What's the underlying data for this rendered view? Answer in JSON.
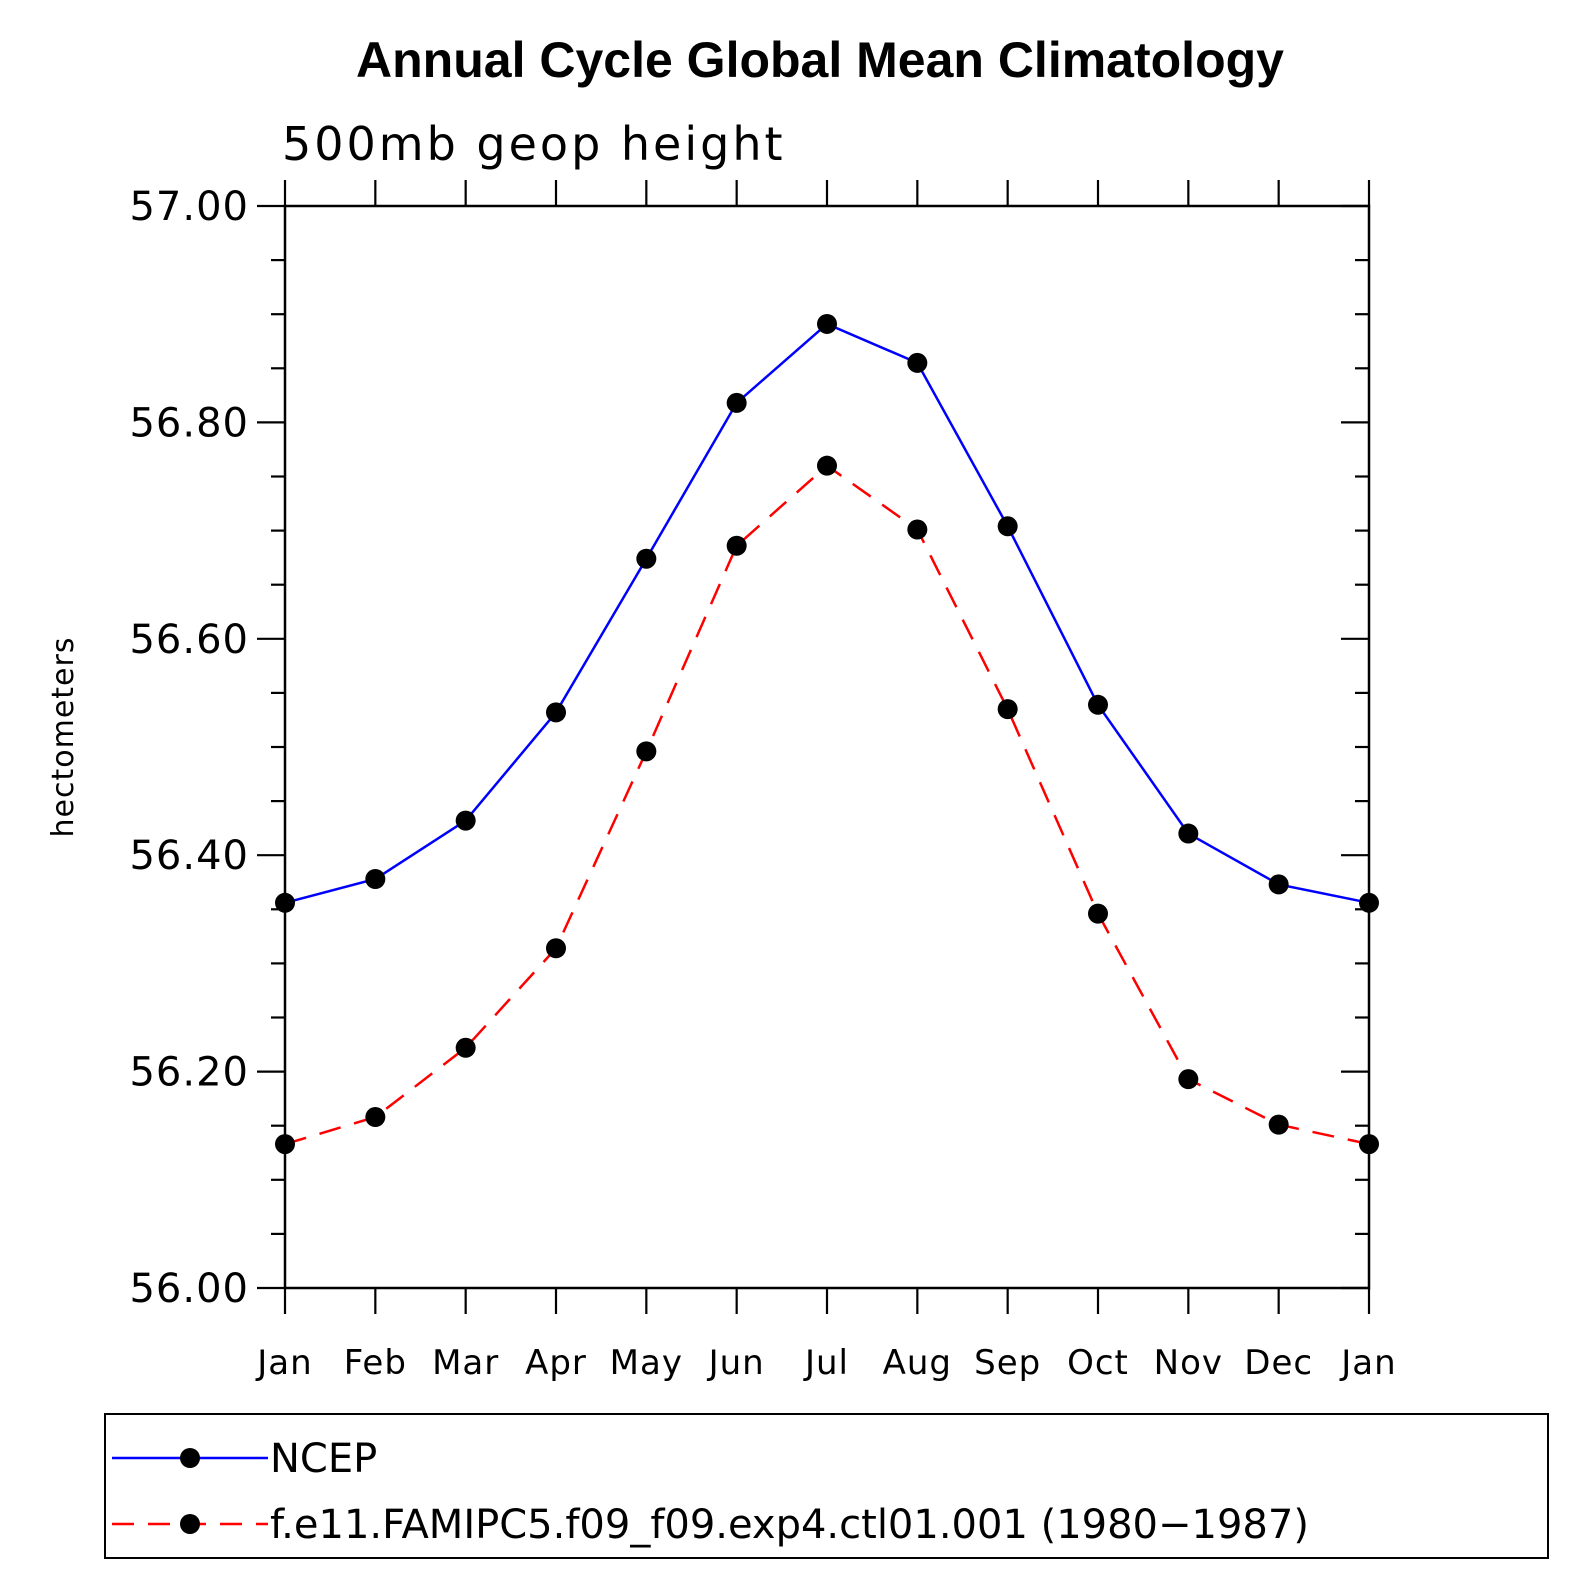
{
  "chart_data": {
    "type": "line",
    "title": "Annual Cycle Global Mean Climatology",
    "subtitle": "500mb geop height",
    "xlabel": "",
    "ylabel": "hectometers",
    "categories": [
      "Jan",
      "Feb",
      "Mar",
      "Apr",
      "May",
      "Jun",
      "Jul",
      "Aug",
      "Sep",
      "Oct",
      "Nov",
      "Dec",
      "Jan"
    ],
    "ylim": [
      56.0,
      57.0
    ],
    "yticks": [
      "56.00",
      "56.20",
      "56.40",
      "56.60",
      "56.80",
      "57.00"
    ],
    "grid": false,
    "legend_position": "bottom",
    "series": [
      {
        "name": "NCEP",
        "color": "#0000ff",
        "dash": "solid",
        "marker": "filled-circle",
        "values": [
          56.356,
          56.378,
          56.432,
          56.532,
          56.674,
          56.818,
          56.891,
          56.855,
          56.704,
          56.539,
          56.42,
          56.373,
          56.356
        ]
      },
      {
        "name": "f.e11.FAMIPC5.f09_f09.exp4.ctl01.001 (1980−1987)",
        "color": "#ff0000",
        "dash": "dashed",
        "marker": "filled-circle",
        "values": [
          56.133,
          56.158,
          56.222,
          56.314,
          56.496,
          56.686,
          56.76,
          56.701,
          56.535,
          56.346,
          56.193,
          56.151,
          56.133
        ]
      }
    ]
  }
}
